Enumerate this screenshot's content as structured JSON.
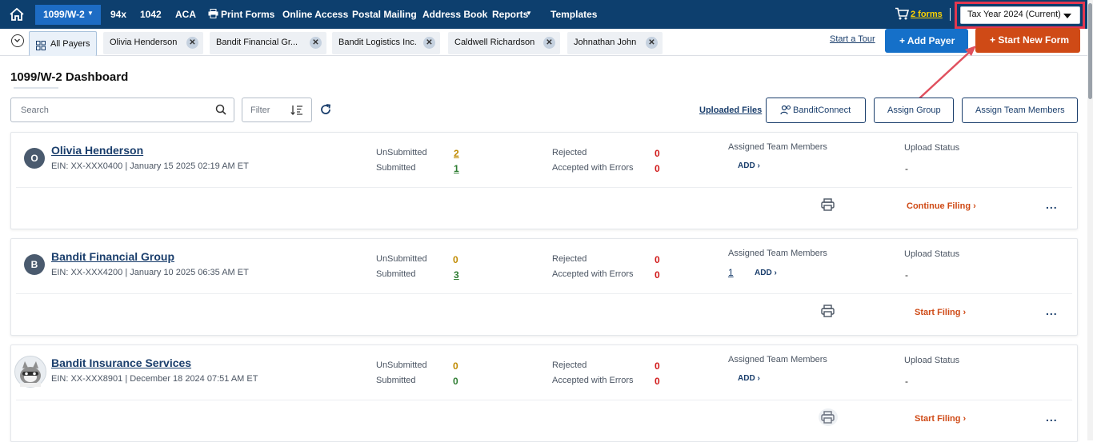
{
  "topnav": {
    "items": [
      "1099/W-2",
      "94x",
      "1042",
      "ACA",
      "Print Forms",
      "Online Access",
      "Postal Mailing",
      "Address Book",
      "Reports",
      "Templates"
    ],
    "cart_label": "2 forms",
    "tax_year": "Tax Year 2024 (Current)"
  },
  "tabs": {
    "all": "All Payers",
    "open": [
      "Olivia Henderson",
      "Bandit Financial Gr...",
      "Bandit Logistics Inc.",
      "Caldwell Richardson",
      "Johnathan John"
    ]
  },
  "actions": {
    "tour": "Start a Tour",
    "add_payer": "+ Add Payer",
    "start_new_form": "+ Start New Form"
  },
  "dashboard": {
    "title": "1099/W-2 Dashboard",
    "search_placeholder": "Search",
    "filter_placeholder": "Filter",
    "uploaded_files": "Uploaded Files",
    "bandit_connect": "BanditConnect",
    "assign_group": "Assign Group",
    "assign_team": "Assign Team Members"
  },
  "labels": {
    "unsubmitted": "UnSubmitted",
    "submitted": "Submitted",
    "rejected": "Rejected",
    "accepted_errors": "Accepted with Errors",
    "assigned_team": "Assigned Team Members",
    "upload_status": "Upload Status",
    "add": "ADD",
    "more": "..."
  },
  "payers": [
    {
      "initial": "O",
      "name": "Olivia Henderson",
      "meta": "EIN: XX-XXX0400  |  January 15 2025 02:19 AM ET",
      "unsubmitted": "2",
      "submitted": "1",
      "rejected": "0",
      "accepted_errors": "0",
      "team_count": "",
      "upload_status": "-",
      "action": "Continue Filing"
    },
    {
      "initial": "B",
      "name": "Bandit Financial Group",
      "meta": "EIN: XX-XXX4200  |  January 10 2025 06:35 AM ET",
      "unsubmitted": "0",
      "submitted": "3",
      "rejected": "0",
      "accepted_errors": "0",
      "team_count": "1",
      "upload_status": "-",
      "action": "Start Filing"
    },
    {
      "initial": "",
      "name": "Bandit Insurance Services",
      "meta": "EIN: XX-XXX8901  |  December 18 2024 07:51 AM ET",
      "unsubmitted": "0",
      "submitted": "0",
      "rejected": "0",
      "accepted_errors": "0",
      "team_count": "",
      "upload_status": "-",
      "action": "Start Filing"
    }
  ]
}
